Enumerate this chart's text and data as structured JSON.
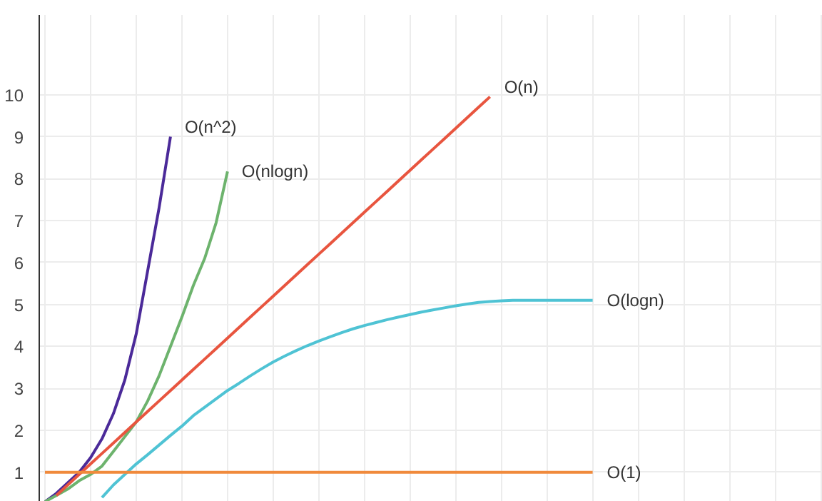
{
  "chart_data": {
    "type": "line",
    "legend": false,
    "grid": true,
    "tick_labels": "y",
    "line_style": "solid",
    "ylim": [
      0.3,
      11.9
    ],
    "yticks": [
      1,
      2,
      3,
      4,
      5,
      6,
      7,
      8,
      9,
      10
    ],
    "categories": [
      null,
      null,
      null,
      null,
      null,
      null,
      null,
      null,
      null,
      null,
      null,
      null,
      null,
      null,
      null,
      null,
      null,
      null,
      null,
      null,
      null,
      null,
      null,
      null,
      null,
      null,
      null,
      null,
      null,
      null,
      null,
      null,
      null,
      null,
      null,
      null,
      null,
      null,
      null,
      null,
      null,
      null,
      null,
      null,
      null,
      null,
      null,
      null,
      null
    ],
    "series": [
      {
        "name": "O(n^2)",
        "color": "#4b2a99",
        "values": [
          0.3,
          0.5,
          0.75,
          1.0,
          1.35,
          1.8,
          2.4,
          3.2,
          4.3,
          5.8,
          7.3,
          9.0,
          null,
          null,
          null,
          null,
          null,
          null,
          null,
          null,
          null,
          null,
          null,
          null,
          null,
          null,
          null,
          null,
          null,
          null,
          null,
          null,
          null,
          null,
          null,
          null,
          null,
          null,
          null,
          null,
          null,
          null,
          null,
          null,
          null,
          null,
          null,
          null,
          null
        ]
      },
      {
        "name": "O(nlogn)",
        "color": "#6db36d",
        "values": [
          0.3,
          0.45,
          0.6,
          0.8,
          0.95,
          1.15,
          1.5,
          1.85,
          2.2,
          2.7,
          3.3,
          4.0,
          4.7,
          5.45,
          6.1,
          6.95,
          8.17,
          null,
          null,
          null,
          null,
          null,
          null,
          null,
          null,
          null,
          null,
          null,
          null,
          null,
          null,
          null,
          null,
          null,
          null,
          null,
          null,
          null,
          null,
          null,
          null,
          null,
          null,
          null,
          null,
          null,
          null,
          null,
          null
        ]
      },
      {
        "name": "O(n)",
        "color": "#e8553f",
        "values": [
          null,
          0.45,
          0.7,
          0.95,
          1.2,
          1.45,
          1.7,
          1.95,
          2.2,
          2.45,
          2.7,
          2.95,
          3.2,
          3.45,
          3.7,
          3.95,
          4.2,
          4.45,
          4.7,
          4.95,
          5.2,
          5.45,
          5.7,
          5.95,
          6.2,
          6.45,
          6.7,
          6.95,
          7.2,
          7.45,
          7.7,
          7.95,
          8.2,
          8.45,
          8.7,
          8.95,
          9.2,
          9.45,
          9.7,
          9.95,
          null,
          null,
          null,
          null,
          null,
          null,
          null,
          null,
          null
        ]
      },
      {
        "name": "O(logn)",
        "color": "#4fc3d4",
        "values": [
          null,
          null,
          null,
          null,
          null,
          0.4,
          0.7,
          0.95,
          1.2,
          1.42,
          1.65,
          1.88,
          2.1,
          2.35,
          2.55,
          2.75,
          2.95,
          3.12,
          3.3,
          3.47,
          3.63,
          3.77,
          3.9,
          4.02,
          4.13,
          4.23,
          4.33,
          4.42,
          4.5,
          4.57,
          4.64,
          4.7,
          4.76,
          4.82,
          4.87,
          4.92,
          4.97,
          5.01,
          5.05,
          5.07,
          5.09,
          5.1,
          5.1,
          5.1,
          5.1,
          5.1,
          5.1,
          5.1,
          5.1
        ]
      },
      {
        "name": "O(1)",
        "color": "#f08a3c",
        "values": [
          1,
          1,
          1,
          1,
          1,
          1,
          1,
          1,
          1,
          1,
          1,
          1,
          1,
          1,
          1,
          1,
          1,
          1,
          1,
          1,
          1,
          1,
          1,
          1,
          1,
          1,
          1,
          1,
          1,
          1,
          1,
          1,
          1,
          1,
          1,
          1,
          1,
          1,
          1,
          1,
          1,
          1,
          1,
          1,
          1,
          1,
          1,
          1,
          1
        ]
      }
    ]
  }
}
